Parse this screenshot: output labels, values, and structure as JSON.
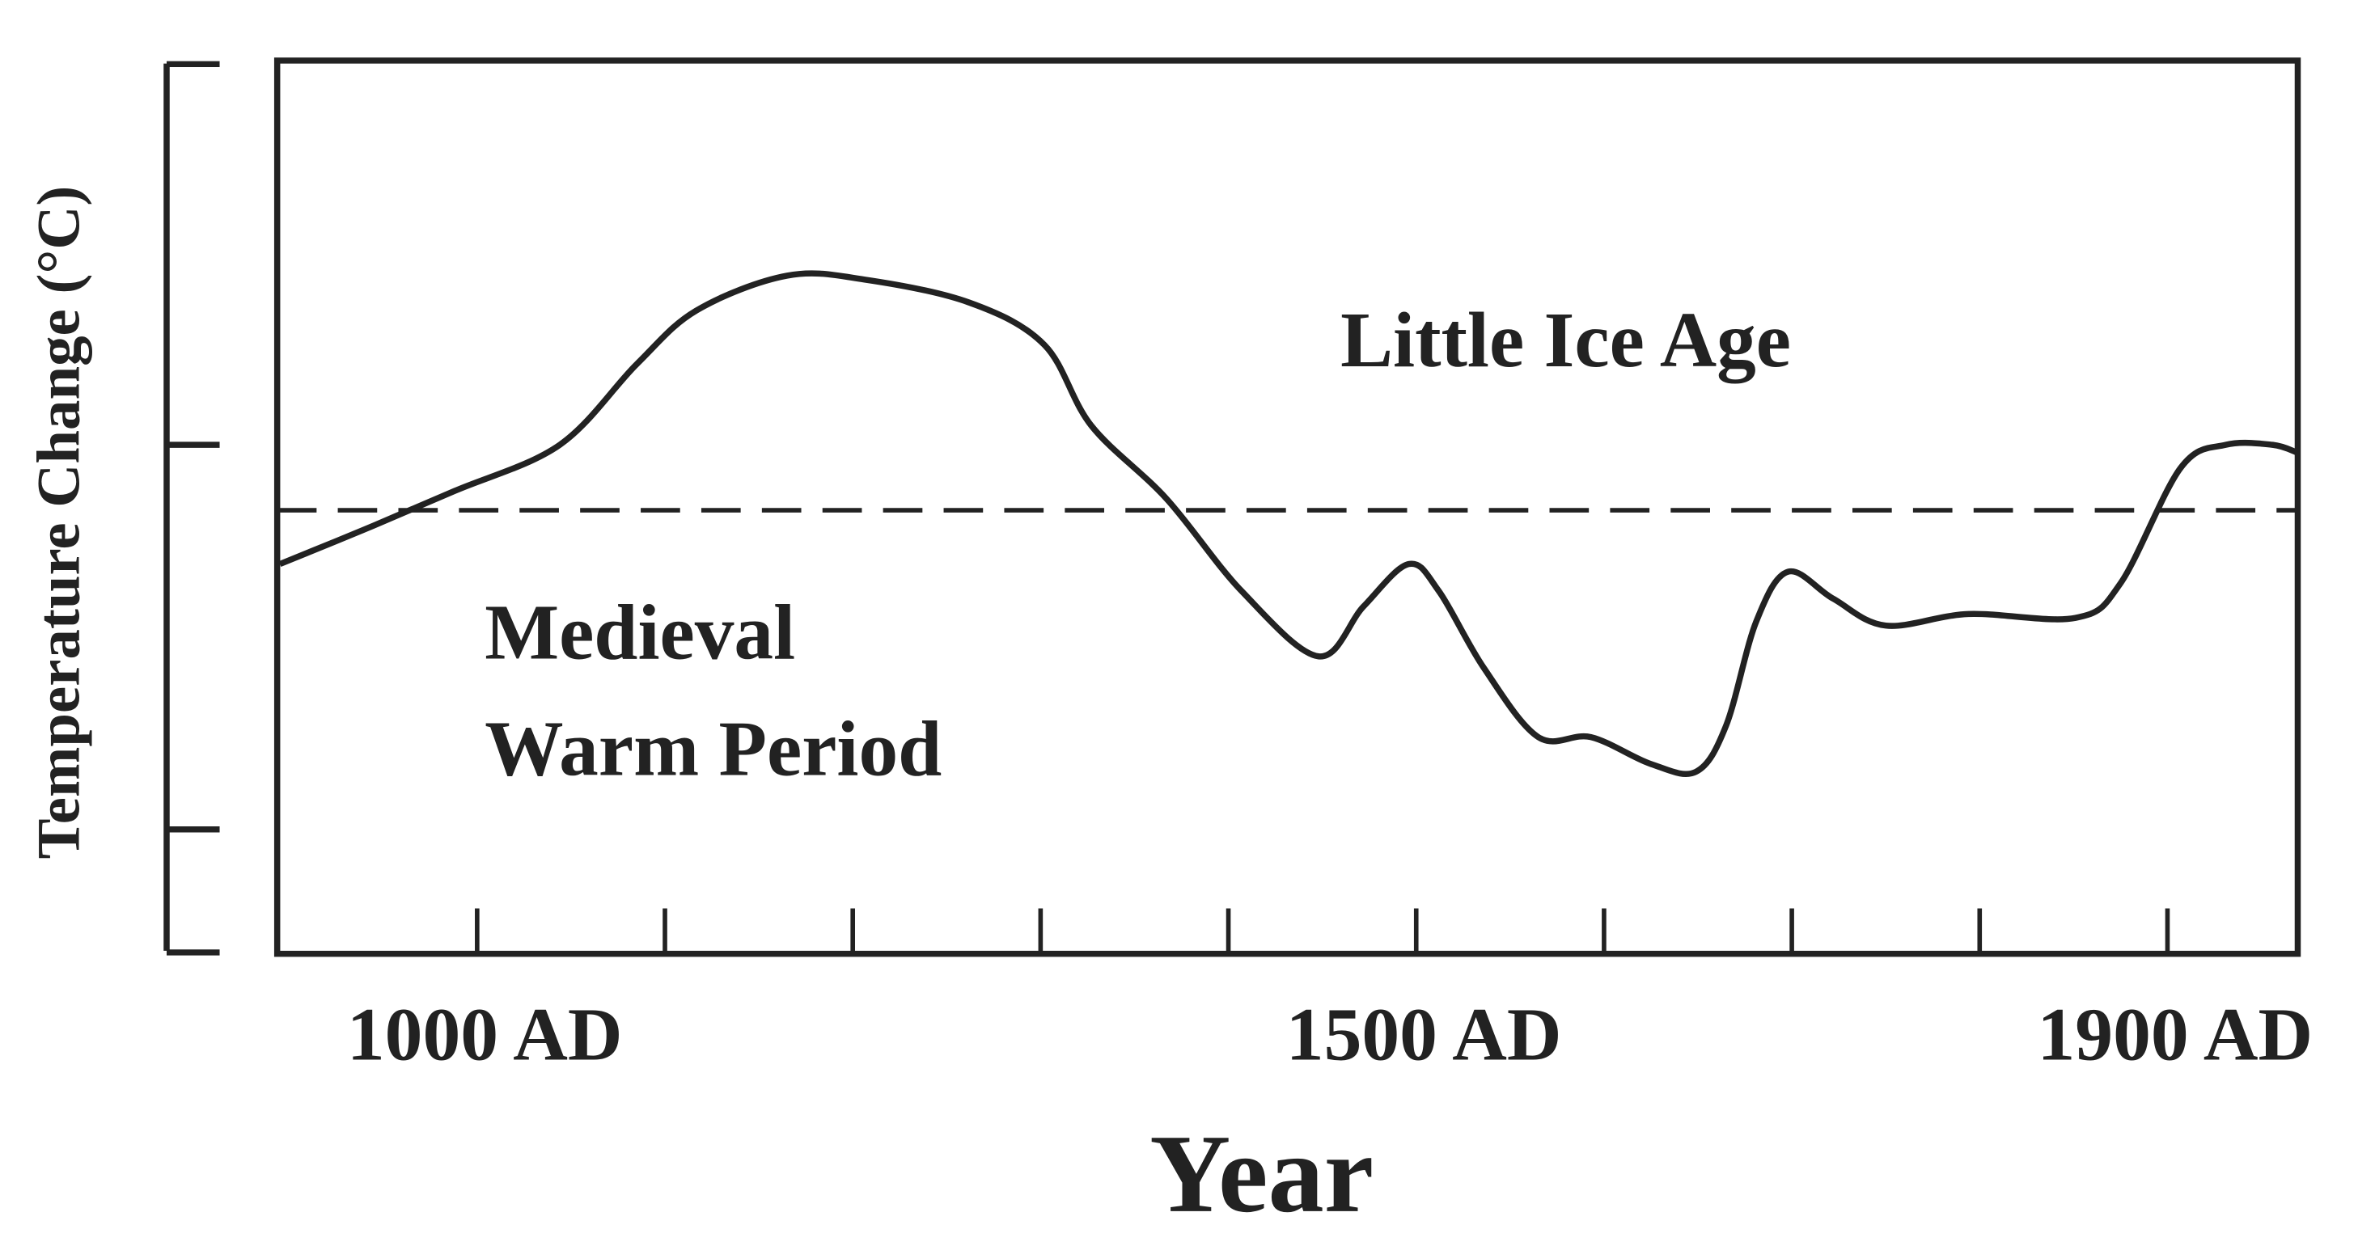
{
  "chart_data": {
    "type": "line",
    "title": "",
    "xlabel": "Year",
    "ylabel": "Temperature Change (°C)",
    "x_tick_labels": [
      {
        "x": 1000,
        "label": "1000 AD"
      },
      {
        "x": 1500,
        "label": "1500 AD"
      },
      {
        "x": 1900,
        "label": "1900 AD"
      }
    ],
    "x_ticks": [
      1000,
      1100,
      1200,
      1300,
      1400,
      1500,
      1600,
      1700,
      1800,
      1900
    ],
    "y_ticks": [
      1.16,
      0.17,
      -0.83,
      -1.15
    ],
    "xlim": [
      895,
      1970
    ],
    "ylim": [
      -1.15,
      1.16
    ],
    "y_units_note": "relative (unlabeled axis), 0 = dashed reference line",
    "reference_line": {
      "y": 0,
      "style": "dashed"
    },
    "annotations": [
      {
        "text": "Little Ice Age"
      },
      {
        "text": "Medieval"
      },
      {
        "text": "Warm Period"
      }
    ],
    "series": [
      {
        "name": "temperature",
        "x": [
          895,
          940,
          988,
          1044,
          1085,
          1117,
          1165,
          1206,
          1262,
          1302,
          1327,
          1367,
          1407,
          1448,
          1472,
          1496,
          1512,
          1536,
          1565,
          1593,
          1625,
          1649,
          1665,
          1681,
          1698,
          1722,
          1750,
          1794,
          1851,
          1875,
          1907,
          1931,
          1956,
          1969
        ],
        "y": [
          -0.14,
          -0.05,
          0.05,
          0.17,
          0.38,
          0.52,
          0.61,
          0.6,
          0.54,
          0.43,
          0.22,
          0.03,
          -0.21,
          -0.38,
          -0.25,
          -0.14,
          -0.21,
          -0.41,
          -0.59,
          -0.59,
          -0.66,
          -0.68,
          -0.56,
          -0.29,
          -0.16,
          -0.23,
          -0.3,
          -0.27,
          -0.28,
          -0.19,
          0.11,
          0.17,
          0.17,
          0.15
        ]
      }
    ],
    "grid": false,
    "color": "#222222"
  }
}
